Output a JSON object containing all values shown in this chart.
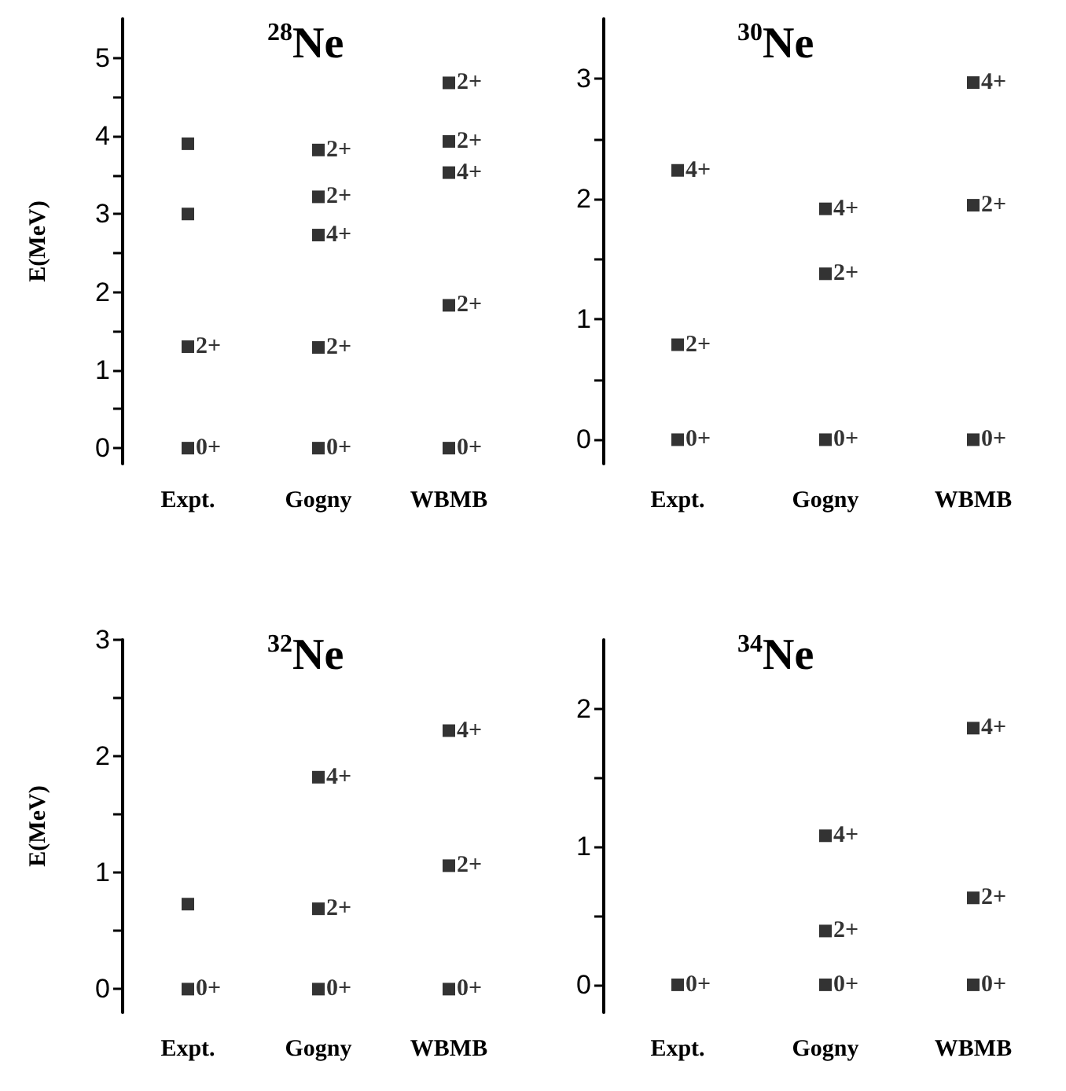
{
  "chart_data": [
    {
      "type": "scatter",
      "title": "$^{28}$Ne",
      "ylabel": "E(MeV)",
      "categories": [
        "Expt.",
        "Gogny",
        "WBMB"
      ],
      "ylim": [
        -0.2,
        5.5
      ],
      "marker": "square",
      "yticks": [
        0,
        {
          "value": 0.5,
          "label": null
        },
        1,
        {
          "value": 1.5,
          "label": null
        },
        2,
        {
          "value": 2.5,
          "label": null
        },
        3,
        {
          "value": 3.5,
          "label": null
        },
        4,
        {
          "value": 4.5,
          "label": null
        },
        5
      ],
      "grid": false,
      "series": [
        {
          "color": "#000000",
          "x": [
            "Expt.",
            "Expt.",
            "Expt.",
            "Expt.",
            "Gogny",
            "Gogny",
            "Gogny",
            "Gogny",
            "Gogny",
            "WBMB",
            "WBMB",
            "WBMB",
            "WBMB",
            "WBMB"
          ],
          "values": [
            0,
            1.3,
            3.0,
            3.9,
            0,
            1.29,
            2.73,
            3.22,
            3.82,
            0,
            1.83,
            3.53,
            3.93,
            4.68
          ],
          "value_labels": [
            "0+",
            "2+",
            null,
            null,
            "0+",
            "2+",
            "4+",
            "2+",
            "2+",
            "0+",
            "2+",
            "4+",
            "2+",
            "2+"
          ]
        }
      ]
    },
    {
      "type": "scatter",
      "title": "$^{30}$Ne",
      "categories": [
        "Expt.",
        "Gogny",
        "WBMB"
      ],
      "ylim": [
        -0.2,
        3.5
      ],
      "marker": "square",
      "yticks": [
        0,
        {
          "value": 0.5,
          "label": null
        },
        1,
        {
          "value": 1.5,
          "label": null
        },
        2,
        {
          "value": 2.5,
          "label": null
        },
        3
      ],
      "grid": false,
      "series": [
        {
          "color": "#000000",
          "x": [
            "Expt.",
            "Expt.",
            "Expt.",
            "Gogny",
            "Gogny",
            "Gogny",
            "WBMB",
            "WBMB",
            "WBMB"
          ],
          "values": [
            0,
            0.79,
            2.24,
            0,
            1.38,
            1.92,
            0,
            1.95,
            2.97
          ],
          "value_labels": [
            "0+",
            "2+",
            "4+",
            "0+",
            "2+",
            "4+",
            "0+",
            "2+",
            "4+"
          ]
        }
      ]
    },
    {
      "type": "scatter",
      "title": "$^{32}$Ne",
      "ylabel": "E(MeV)",
      "categories": [
        "Expt.",
        "Gogny",
        "WBMB"
      ],
      "ylim": [
        -0.2,
        3
      ],
      "marker": "square",
      "yticks": [
        0,
        {
          "value": 0.5,
          "label": null
        },
        1,
        {
          "value": 1.5,
          "label": null
        },
        2,
        {
          "value": 2.5,
          "label": null
        },
        3
      ],
      "grid": false,
      "series": [
        {
          "color": "#000000",
          "x": [
            "Expt.",
            "Expt.",
            "Gogny",
            "Gogny",
            "Gogny",
            "WBMB",
            "WBMB",
            "WBMB"
          ],
          "values": [
            0,
            0.73,
            0,
            0.69,
            1.82,
            0,
            1.06,
            2.22
          ],
          "value_labels": [
            "0+",
            null,
            "0+",
            "2+",
            "4+",
            "0+",
            "2+",
            "4+"
          ]
        }
      ]
    },
    {
      "type": "scatter",
      "title": "$^{34}$Ne",
      "categories": [
        "Expt.",
        "Gogny",
        "WBMB"
      ],
      "ylim": [
        -0.2,
        2.5
      ],
      "marker": "square",
      "yticks": [
        0,
        {
          "value": 0.5,
          "label": null
        },
        1,
        {
          "value": 1.5,
          "label": null
        },
        2
      ],
      "grid": false,
      "series": [
        {
          "color": "#000000",
          "x": [
            "Expt.",
            "Gogny",
            "Gogny",
            "Gogny",
            "WBMB",
            "WBMB",
            "WBMB"
          ],
          "values": [
            0,
            0,
            0.39,
            1.08,
            0,
            0.63,
            1.86
          ],
          "value_labels": [
            "0+",
            "0+",
            "2+",
            "4+",
            "0+",
            "2+",
            "4+"
          ]
        }
      ]
    }
  ]
}
